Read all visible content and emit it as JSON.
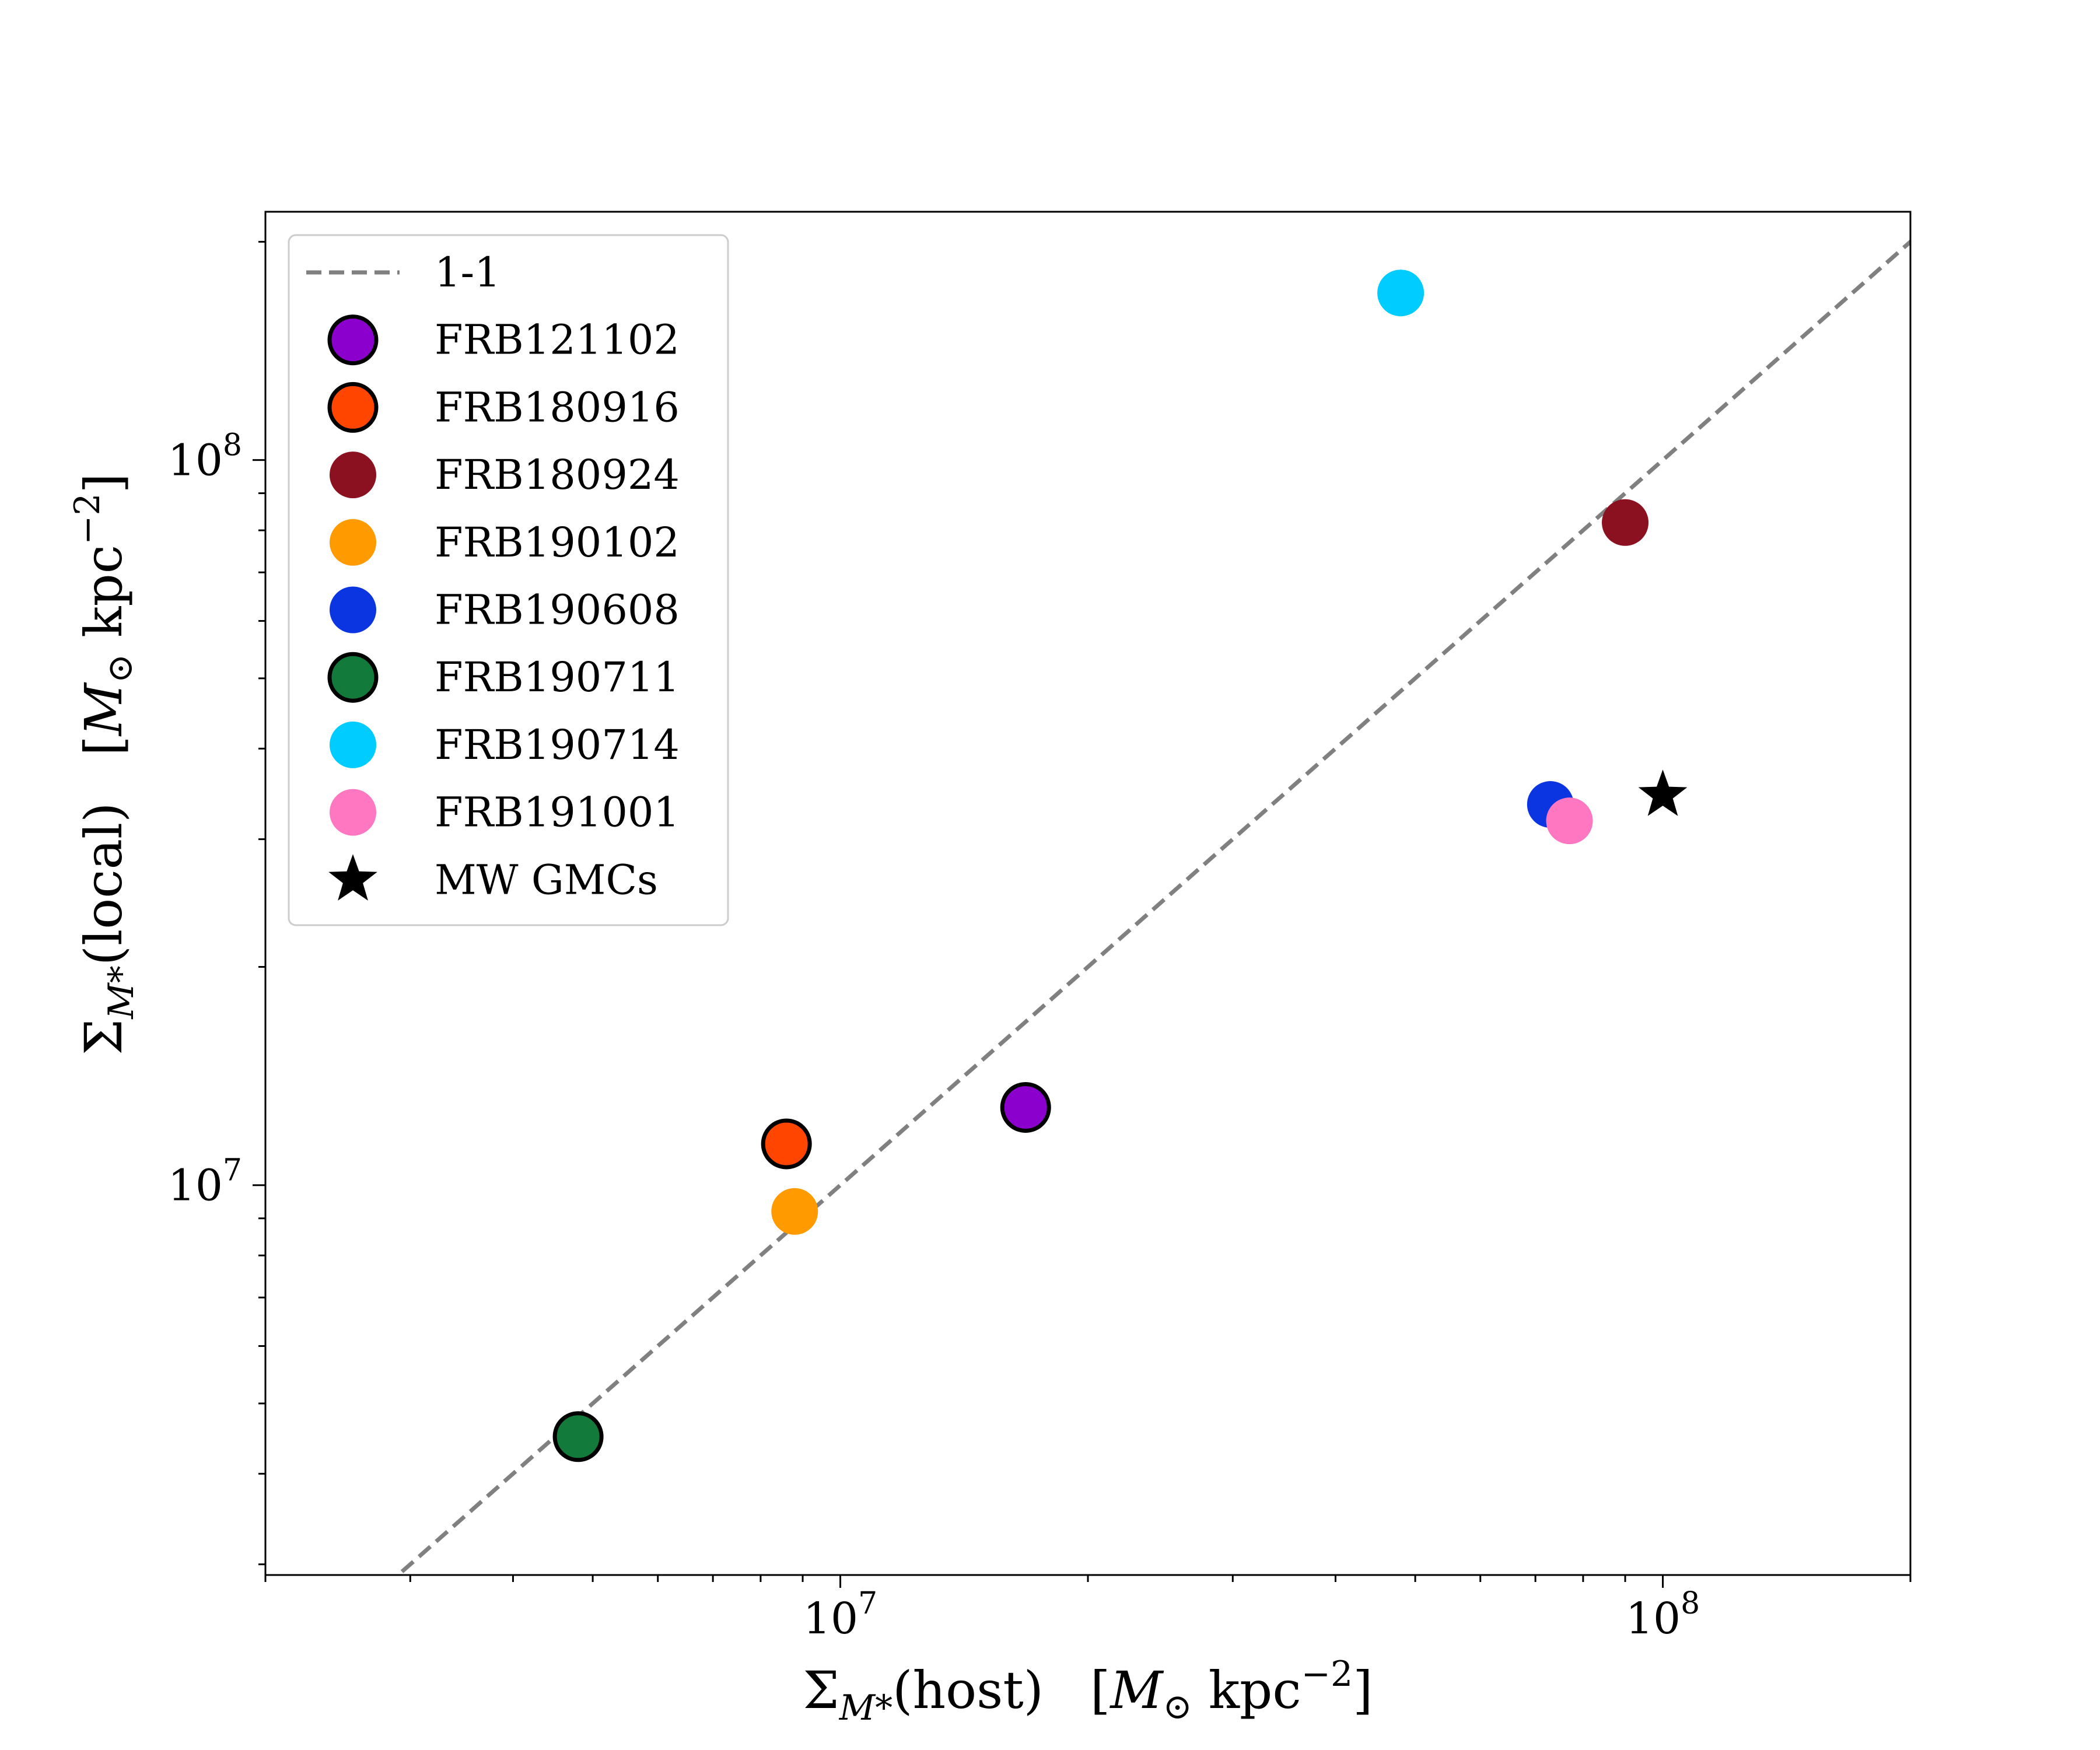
{
  "chart_data": {
    "type": "scatter",
    "x_scale": "log",
    "y_scale": "log",
    "xlim": [
      2000000,
      200000000
    ],
    "ylim": [
      2900000,
      220000000
    ],
    "x_major_ticks": [
      {
        "value": 10000000,
        "base": "10",
        "exp": "7"
      },
      {
        "value": 100000000,
        "base": "10",
        "exp": "8"
      }
    ],
    "y_major_ticks": [
      {
        "value": 10000000,
        "base": "10",
        "exp": "7"
      },
      {
        "value": 100000000,
        "base": "10",
        "exp": "8"
      }
    ],
    "xlabel": {
      "sym": "Σ",
      "sub": "M*",
      "main": "(host)",
      "unit_open": "[",
      "unit_m": "M",
      "unit_sun": "⊙",
      "unit_kpc": " kpc",
      "unit_sup": "−2",
      "unit_close": "]"
    },
    "ylabel": {
      "sym": "Σ",
      "sub": "M*",
      "main": "(local)",
      "unit_open": "[",
      "unit_m": "M",
      "unit_sun": "⊙",
      "unit_kpc": " kpc",
      "unit_sup": "−2",
      "unit_close": "]"
    },
    "legend_position": "upper-left",
    "one_to_one": {
      "name": "1-1",
      "color": "#808080"
    },
    "series": [
      {
        "name": "FRB121102",
        "color": "#8B00CC",
        "edge": true,
        "marker": "circle",
        "x": 16800000,
        "y": 12800000
      },
      {
        "name": "FRB180916",
        "color": "#FF4500",
        "edge": true,
        "marker": "circle",
        "x": 8600000,
        "y": 11400000
      },
      {
        "name": "FRB180924",
        "color": "#8B1120",
        "edge": false,
        "marker": "circle",
        "x": 90000000,
        "y": 82000000
      },
      {
        "name": "FRB190102",
        "color": "#FF9A00",
        "edge": false,
        "marker": "circle",
        "x": 8800000,
        "y": 9200000
      },
      {
        "name": "FRB190608",
        "color": "#0A35E0",
        "edge": false,
        "marker": "circle",
        "x": 73000000,
        "y": 33500000
      },
      {
        "name": "FRB190711",
        "color": "#127A3A",
        "edge": true,
        "marker": "circle",
        "x": 4800000,
        "y": 4500000
      },
      {
        "name": "FRB190714",
        "color": "#00CCFF",
        "edge": false,
        "marker": "circle",
        "x": 48000000,
        "y": 170000000
      },
      {
        "name": "FRB191001",
        "color": "#FF77C0",
        "edge": false,
        "marker": "circle",
        "x": 77000000,
        "y": 31800000
      },
      {
        "name": "MW GMCs",
        "color": "#000000",
        "edge": false,
        "marker": "star",
        "x": 100000000,
        "y": 34500000
      }
    ]
  }
}
